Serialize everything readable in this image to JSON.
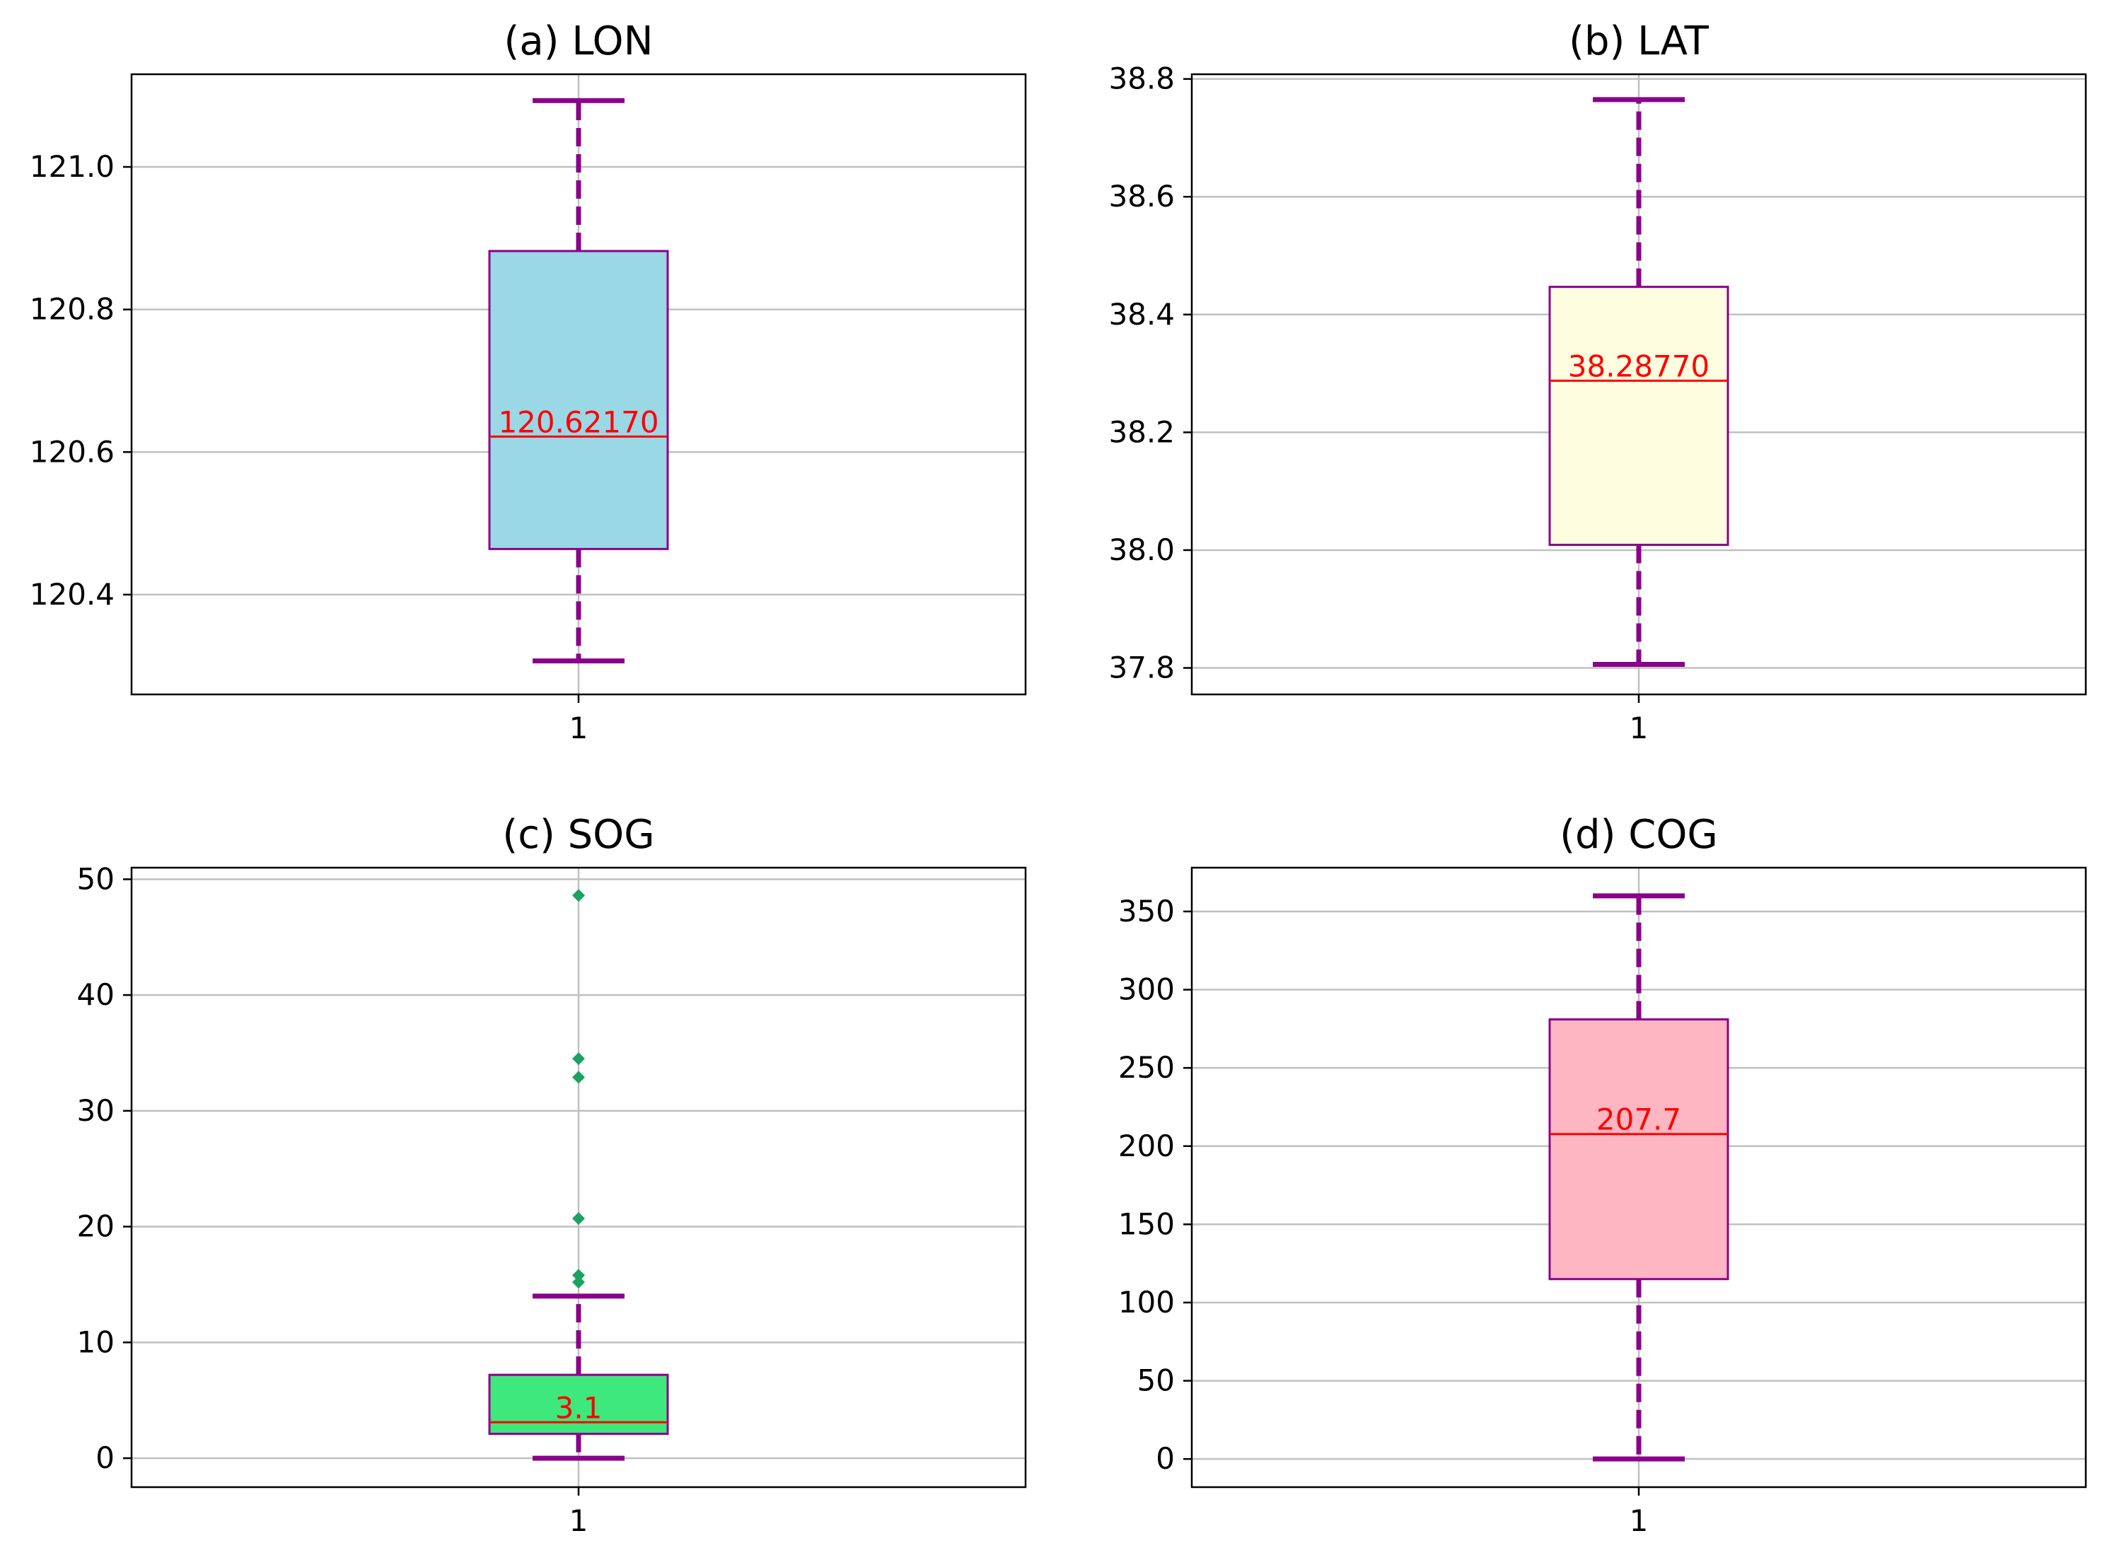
{
  "chart_data": [
    {
      "type": "box",
      "title": "(a) LON",
      "category": "1",
      "ylim": [
        120.26,
        121.13
      ],
      "yticks": [
        120.4,
        120.6,
        120.8,
        121.0
      ],
      "ytick_labels": [
        "120.4",
        "120.6",
        "120.8",
        "121.0"
      ],
      "whisker_low": 120.307,
      "q1": 120.464,
      "median": 120.6217,
      "q3": 120.882,
      "whisker_high": 121.093,
      "median_label": "120.62170",
      "outliers": [],
      "box_color": "#9ad8e6",
      "grid": true
    },
    {
      "type": "box",
      "title": "(b) LAT",
      "category": "1",
      "ylim": [
        37.755,
        38.808
      ],
      "yticks": [
        37.8,
        38.0,
        38.2,
        38.4,
        38.6,
        38.8
      ],
      "ytick_labels": [
        "37.8",
        "38.0",
        "38.2",
        "38.4",
        "38.6",
        "38.8"
      ],
      "whisker_low": 37.806,
      "q1": 38.009,
      "median": 38.2877,
      "q3": 38.447,
      "whisker_high": 38.765,
      "median_label": "38.28770",
      "outliers": [],
      "box_color": "#fdfde0",
      "grid": true
    },
    {
      "type": "box",
      "title": "(c) SOG",
      "category": "1",
      "ylim": [
        -2.5,
        51.0
      ],
      "yticks": [
        0,
        10,
        20,
        30,
        40,
        50
      ],
      "ytick_labels": [
        "0",
        "10",
        "20",
        "30",
        "40",
        "50"
      ],
      "whisker_low": 0,
      "q1": 2.1,
      "median": 3.1,
      "q3": 7.2,
      "whisker_high": 14.0,
      "median_label": "3.1",
      "outliers": [
        15.2,
        15.8,
        20.7,
        32.9,
        34.5,
        48.6
      ],
      "box_color": "#3ee87c",
      "outlier_color": "#1aa35e",
      "grid": true
    },
    {
      "type": "box",
      "title": "(d) COG",
      "category": "1",
      "ylim": [
        -18,
        378
      ],
      "yticks": [
        0,
        50,
        100,
        150,
        200,
        250,
        300,
        350
      ],
      "ytick_labels": [
        "0",
        "50",
        "100",
        "150",
        "200",
        "250",
        "300",
        "350"
      ],
      "whisker_low": 0,
      "q1": 115,
      "median": 207.7,
      "q3": 281,
      "whisker_high": 360,
      "median_label": "207.7",
      "outliers": [],
      "box_color": "#feb6c2",
      "grid": true
    }
  ],
  "colors": {
    "box_edge": "#8b008b",
    "whisker": "#8b008b",
    "median": "#ff0000",
    "grid": "#c0c0c0",
    "axes": "#000000"
  }
}
